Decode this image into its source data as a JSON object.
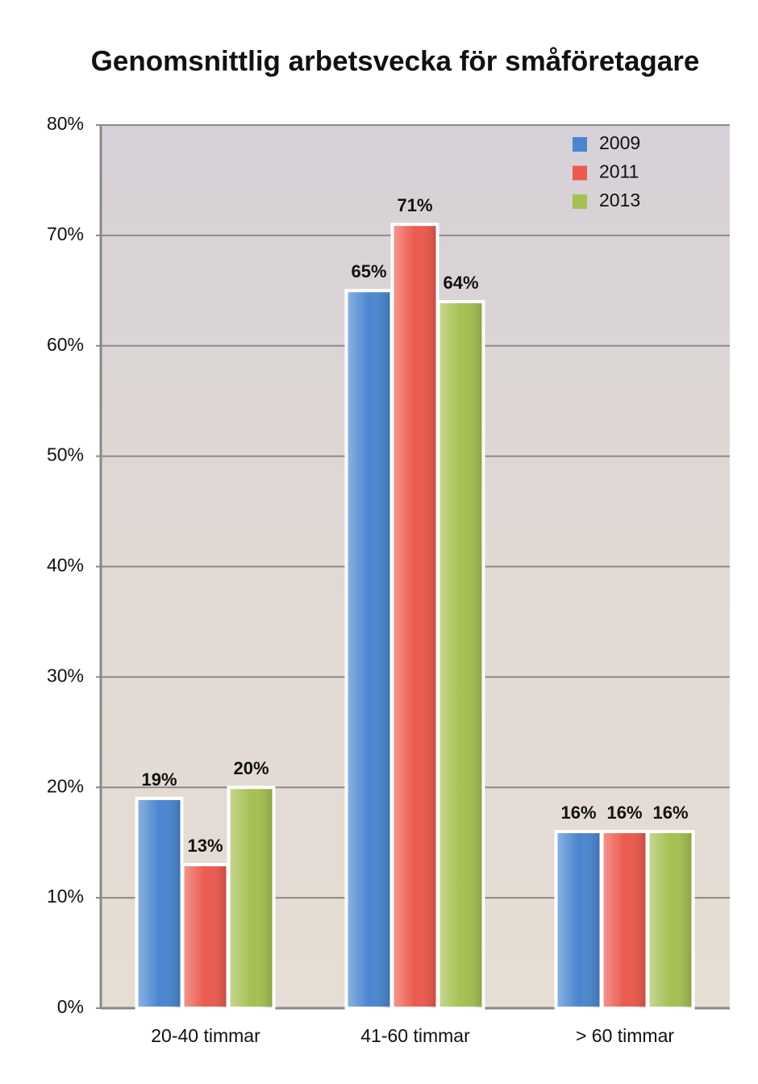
{
  "chart_data": {
    "type": "bar",
    "title": "Genomsnittlig arbetsvecka för småföretagare",
    "categories": [
      "20-40 timmar",
      "41-60 timmar",
      "> 60 timmar"
    ],
    "series": [
      {
        "name": "2009",
        "color": "#4a86d0",
        "values": [
          19,
          65,
          16
        ],
        "value_labels": [
          "19%",
          "65%",
          "16%"
        ]
      },
      {
        "name": "2011",
        "color": "#ec5a4e",
        "values": [
          13,
          71,
          16
        ],
        "value_labels": [
          "13%",
          "71%",
          "16%"
        ]
      },
      {
        "name": "2013",
        "color": "#a6c052",
        "values": [
          20,
          64,
          16
        ],
        "value_labels": [
          "20%",
          "64%",
          "16%"
        ]
      }
    ],
    "ylim": [
      0,
      80
    ],
    "yticks": [
      {
        "value": 0,
        "label": "0%"
      },
      {
        "value": 10,
        "label": "10%"
      },
      {
        "value": 20,
        "label": "20%"
      },
      {
        "value": 30,
        "label": "30%"
      },
      {
        "value": 40,
        "label": "40%"
      },
      {
        "value": 50,
        "label": "50%"
      },
      {
        "value": 60,
        "label": "60%"
      },
      {
        "value": 70,
        "label": "70%"
      },
      {
        "value": 80,
        "label": "80%"
      }
    ],
    "grid": true,
    "legend": "top-right"
  }
}
